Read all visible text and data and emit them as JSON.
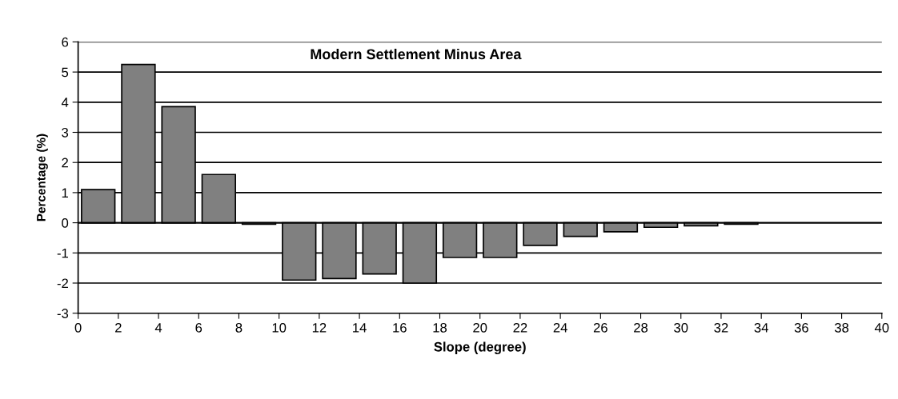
{
  "chart_data": {
    "type": "histogram",
    "title": "Modern Settlement Minus Area",
    "xlabel": "Slope (degree)",
    "ylabel": "Percentage (%)",
    "bins": [
      0,
      2,
      4,
      6,
      8,
      10,
      12,
      14,
      16,
      18,
      20,
      22,
      24,
      26,
      28,
      30,
      32,
      34,
      36,
      38,
      40
    ],
    "values": [
      1.1,
      5.25,
      3.85,
      1.6,
      -0.05,
      -1.9,
      -1.85,
      -1.7,
      -2.0,
      -1.15,
      -1.15,
      -0.75,
      -0.45,
      -0.3,
      -0.15,
      -0.1,
      -0.05,
      null,
      null,
      null
    ],
    "color": "#808080",
    "xlim": [
      0,
      40
    ],
    "xticks": [
      0,
      2,
      4,
      6,
      8,
      10,
      12,
      14,
      16,
      18,
      20,
      22,
      24,
      26,
      28,
      30,
      32,
      34,
      36,
      38,
      40
    ],
    "ylim": [
      -3,
      6
    ],
    "yticks": [
      -3,
      -2,
      -1,
      0,
      1,
      2,
      3,
      4,
      5,
      6
    ],
    "grid": "y",
    "legend": false
  }
}
